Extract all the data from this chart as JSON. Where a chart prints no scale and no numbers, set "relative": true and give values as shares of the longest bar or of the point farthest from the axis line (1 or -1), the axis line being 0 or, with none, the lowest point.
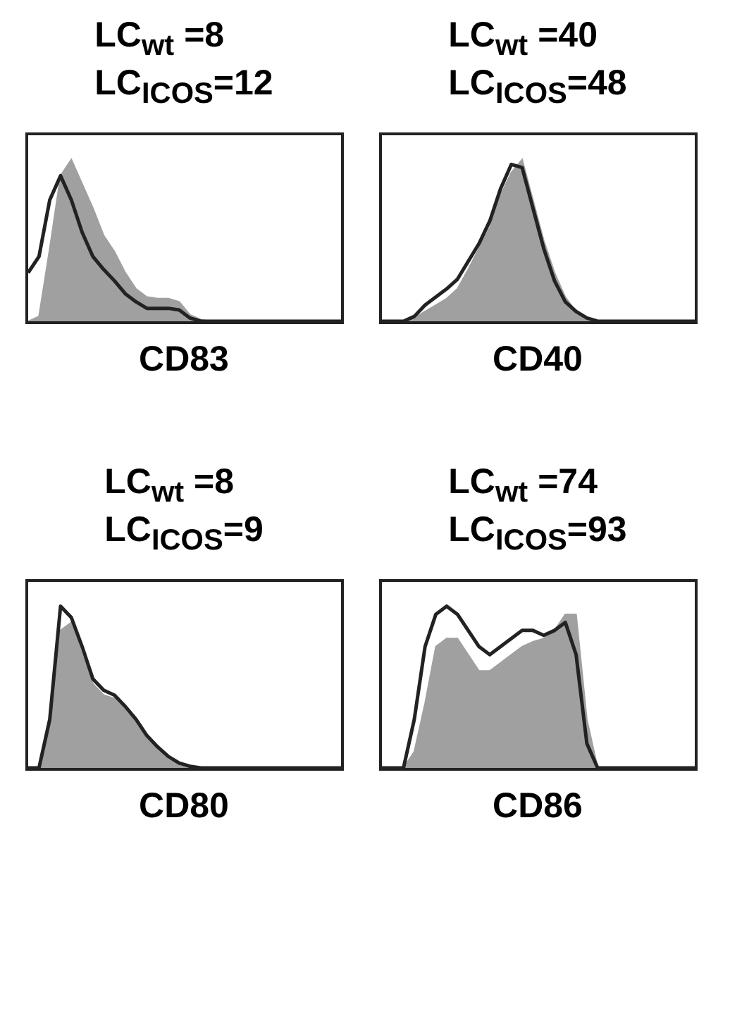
{
  "chart_data": [
    {
      "type": "area",
      "title": "LC$_{wt}$ =8",
      "subtitle": "LC$_{ICOS}$=12",
      "xlabel": "CD83",
      "relative": true,
      "tick_labels": false,
      "categories": [
        null,
        null,
        null,
        null,
        null,
        null,
        null,
        null,
        null,
        null,
        null,
        null,
        null,
        null,
        null,
        null,
        null,
        null,
        null,
        null,
        null,
        null,
        null,
        null,
        null,
        null,
        null,
        null,
        null,
        null
      ],
      "series": [
        {
          "color": "#a0a0a0",
          "values": [
            0,
            0.03,
            0.45,
            0.9,
            1,
            0.85,
            0.7,
            0.53,
            0.43,
            0.3,
            0.2,
            0.15,
            0.14,
            0.14,
            0.12,
            0.04,
            0.01,
            0,
            0,
            0,
            0,
            0,
            0,
            0,
            0,
            0,
            0,
            0,
            0,
            0
          ]
        },
        {
          "type": "line",
          "color": "#222222",
          "values": [
            0.3,
            0.4,
            0.75,
            0.9,
            0.75,
            0.55,
            0.4,
            0.32,
            0.25,
            0.17,
            0.12,
            0.08,
            0.08,
            0.08,
            0.07,
            0.02,
            0,
            0,
            0,
            0,
            0,
            0,
            0,
            0,
            0,
            0,
            0,
            0,
            0,
            0
          ]
        }
      ]
    },
    {
      "type": "area",
      "title": "LC$_{wt}$ =40",
      "subtitle": "LC$_{ICOS}$=48",
      "xlabel": "CD40",
      "relative": true,
      "tick_labels": false,
      "categories": [
        null,
        null,
        null,
        null,
        null,
        null,
        null,
        null,
        null,
        null,
        null,
        null,
        null,
        null,
        null,
        null,
        null,
        null,
        null,
        null,
        null,
        null,
        null,
        null,
        null,
        null,
        null,
        null,
        null,
        null
      ],
      "series": [
        {
          "color": "#a0a0a0",
          "values": [
            0,
            0,
            0,
            0.02,
            0.06,
            0.1,
            0.14,
            0.2,
            0.32,
            0.45,
            0.58,
            0.78,
            0.92,
            1,
            0.75,
            0.5,
            0.3,
            0.15,
            0.06,
            0.02,
            0,
            0,
            0,
            0,
            0,
            0,
            0,
            0,
            0,
            0
          ]
        },
        {
          "type": "line",
          "color": "#222222",
          "values": [
            0,
            0,
            0,
            0.03,
            0.1,
            0.15,
            0.2,
            0.26,
            0.37,
            0.48,
            0.62,
            0.82,
            0.97,
            0.95,
            0.7,
            0.45,
            0.25,
            0.12,
            0.06,
            0.02,
            0,
            0,
            0,
            0,
            0,
            0,
            0,
            0,
            0,
            0
          ]
        }
      ]
    },
    {
      "type": "area",
      "title": "LC$_{wt}$ =8",
      "subtitle": "LC$_{ICOS}$=9",
      "xlabel": "CD80",
      "relative": true,
      "tick_labels": false,
      "categories": [
        null,
        null,
        null,
        null,
        null,
        null,
        null,
        null,
        null,
        null,
        null,
        null,
        null,
        null,
        null,
        null,
        null,
        null,
        null,
        null,
        null,
        null,
        null,
        null,
        null,
        null,
        null,
        null,
        null,
        null
      ],
      "series": [
        {
          "color": "#a0a0a0",
          "values": [
            0,
            0,
            0.25,
            0.85,
            0.9,
            0.7,
            0.52,
            0.45,
            0.43,
            0.36,
            0.28,
            0.18,
            0.11,
            0.05,
            0.02,
            0,
            0,
            0,
            0,
            0,
            0,
            0,
            0,
            0,
            0,
            0,
            0,
            0,
            0,
            0
          ]
        },
        {
          "type": "line",
          "color": "#222222",
          "values": [
            0,
            0,
            0.3,
            1,
            0.93,
            0.75,
            0.55,
            0.48,
            0.45,
            0.38,
            0.3,
            0.2,
            0.13,
            0.07,
            0.03,
            0.01,
            0,
            0,
            0,
            0,
            0,
            0,
            0,
            0,
            0,
            0,
            0,
            0,
            0,
            0
          ]
        }
      ]
    },
    {
      "type": "area",
      "title": "LC$_{wt}$ =74",
      "subtitle": "LC$_{ICOS}$=93",
      "xlabel": "CD86",
      "relative": true,
      "tick_labels": false,
      "categories": [
        null,
        null,
        null,
        null,
        null,
        null,
        null,
        null,
        null,
        null,
        null,
        null,
        null,
        null,
        null,
        null,
        null,
        null,
        null,
        null,
        null,
        null,
        null,
        null,
        null,
        null,
        null,
        null,
        null,
        null
      ],
      "series": [
        {
          "color": "#a0a0a0",
          "values": [
            0,
            0,
            0,
            0.1,
            0.4,
            0.75,
            0.8,
            0.8,
            0.7,
            0.6,
            0.6,
            0.65,
            0.7,
            0.75,
            0.78,
            0.8,
            0.85,
            0.95,
            0.95,
            0.3,
            0,
            0,
            0,
            0,
            0,
            0,
            0,
            0,
            0,
            0
          ]
        },
        {
          "type": "line",
          "color": "#222222",
          "values": [
            0,
            0,
            0,
            0.3,
            0.75,
            0.95,
            1,
            0.95,
            0.85,
            0.75,
            0.7,
            0.75,
            0.8,
            0.85,
            0.85,
            0.82,
            0.85,
            0.9,
            0.7,
            0.15,
            0,
            0,
            0,
            0,
            0,
            0,
            0,
            0,
            0,
            0
          ]
        }
      ]
    }
  ]
}
